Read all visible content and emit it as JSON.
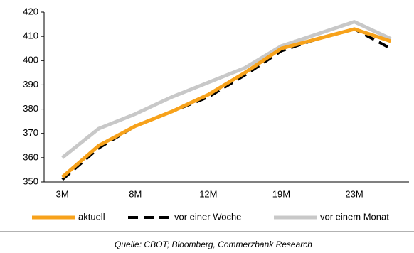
{
  "chart_data": {
    "type": "line",
    "categories": [
      "3M",
      null,
      "8M",
      null,
      "12M",
      null,
      "19M",
      null,
      "23M",
      null
    ],
    "series": [
      {
        "name": "aktuell",
        "color": "#f7a21b",
        "dash": false,
        "values": [
          352,
          365,
          373,
          379,
          386,
          395,
          405,
          409,
          413,
          408
        ]
      },
      {
        "name": "vor einer Woche",
        "color": "#000000",
        "dash": true,
        "values": [
          351,
          364,
          373,
          379,
          385,
          394,
          404,
          409,
          413,
          405
        ]
      },
      {
        "name": "vor einem Monat",
        "color": "#c8c8c8",
        "dash": false,
        "values": [
          360,
          372,
          378,
          385,
          391,
          397,
          406,
          411,
          416,
          409
        ]
      }
    ],
    "ylim": [
      350,
      420
    ],
    "yticks": [
      350,
      360,
      370,
      380,
      390,
      400,
      410,
      420
    ],
    "source": "Quelle: CBOT; Bloomberg, Commerzbank Research"
  }
}
